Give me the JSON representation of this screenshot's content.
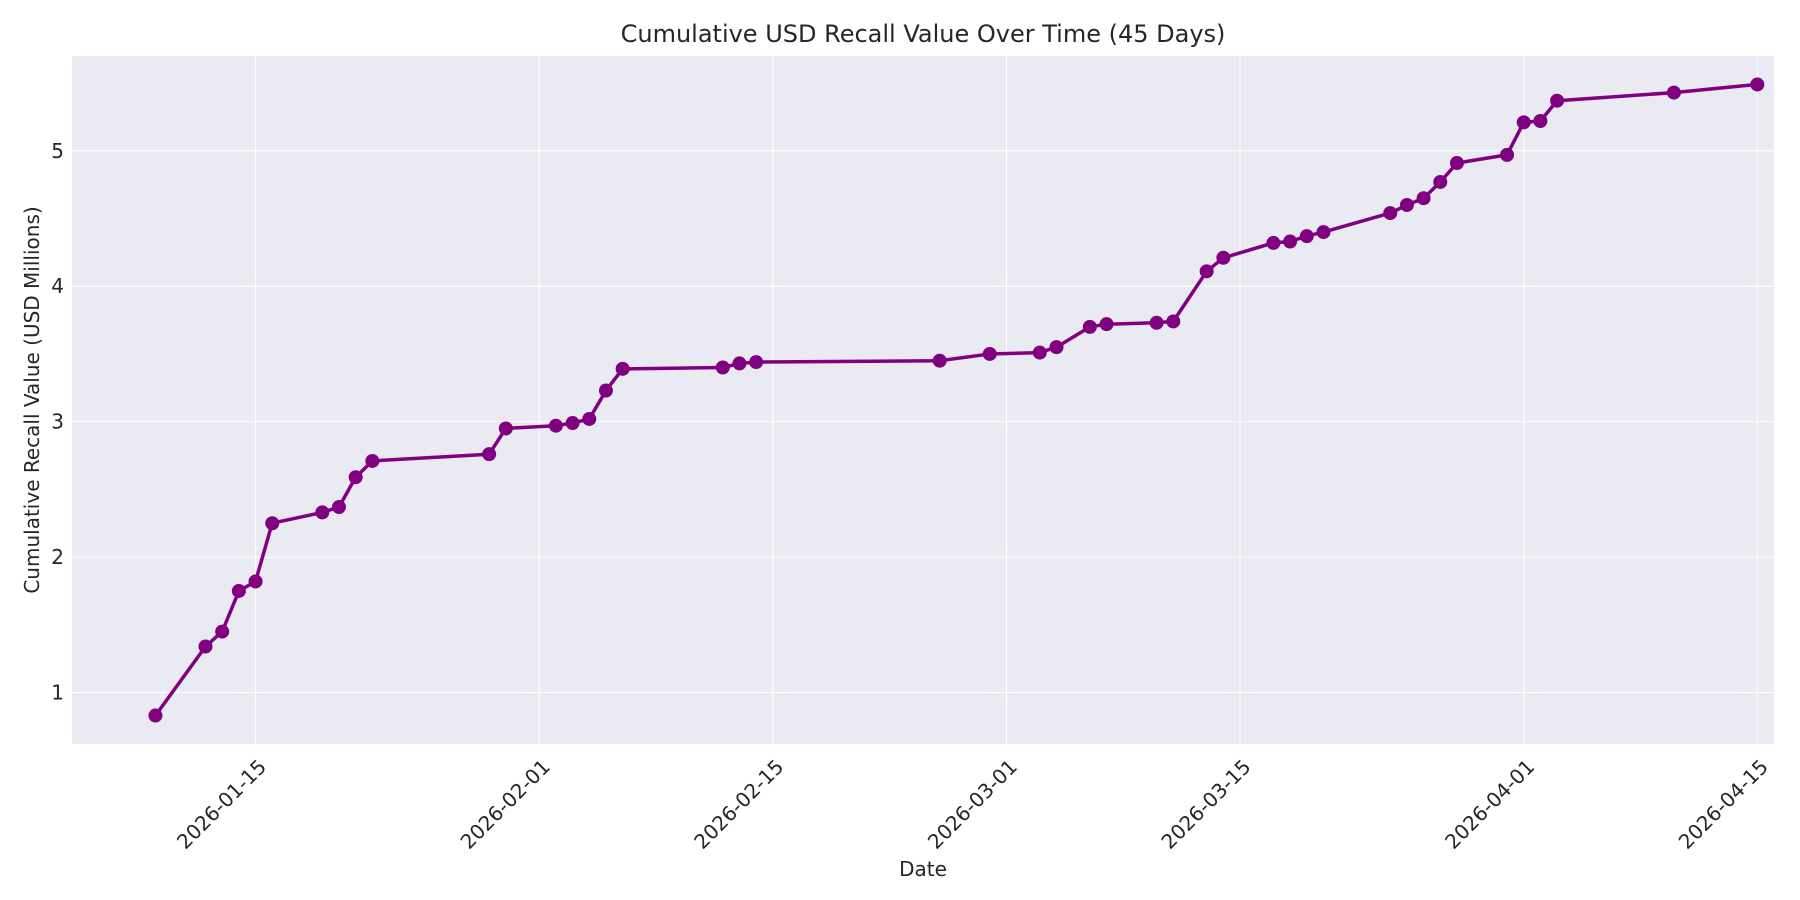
{
  "chart_data": {
    "type": "line",
    "title": "Cumulative USD Recall Value Over Time (45 Days)",
    "xlabel": "Date",
    "ylabel": "Cumulative Recall Value (USD Millions)",
    "xlim": [
      "2026-01-04",
      "2026-04-16"
    ],
    "ylim": [
      0.62,
      5.7
    ],
    "x_ticks": [
      "2026-01-15",
      "2026-02-01",
      "2026-02-15",
      "2026-03-01",
      "2026-03-15",
      "2026-04-01",
      "2026-04-15"
    ],
    "y_ticks": [
      1,
      2,
      3,
      4,
      5
    ],
    "grid": true,
    "colors": {
      "series": "#800080",
      "plot_bg": "#eaeaf2",
      "grid": "#ffffff"
    },
    "series": [
      {
        "x": [
          "2026-01-09",
          "2026-01-12",
          "2026-01-13",
          "2026-01-14",
          "2026-01-15",
          "2026-01-16",
          "2026-01-19",
          "2026-01-20",
          "2026-01-21",
          "2026-01-22",
          "2026-01-29",
          "2026-01-30",
          "2026-02-02",
          "2026-02-03",
          "2026-02-04",
          "2026-02-05",
          "2026-02-06",
          "2026-02-12",
          "2026-02-13",
          "2026-02-14",
          "2026-02-25",
          "2026-02-28",
          "2026-03-03",
          "2026-03-04",
          "2026-03-06",
          "2026-03-07",
          "2026-03-10",
          "2026-03-11",
          "2026-03-13",
          "2026-03-14",
          "2026-03-17",
          "2026-03-18",
          "2026-03-19",
          "2026-03-20",
          "2026-03-24",
          "2026-03-25",
          "2026-03-26",
          "2026-03-27",
          "2026-03-28",
          "2026-03-31",
          "2026-04-01",
          "2026-04-02",
          "2026-04-03",
          "2026-04-10",
          "2026-04-15"
        ],
        "values": [
          0.83,
          1.34,
          1.45,
          1.75,
          1.82,
          2.25,
          2.33,
          2.37,
          2.59,
          2.71,
          2.76,
          2.95,
          2.97,
          2.99,
          3.02,
          3.23,
          3.39,
          3.4,
          3.43,
          3.44,
          3.45,
          3.5,
          3.51,
          3.55,
          3.7,
          3.72,
          3.73,
          3.74,
          4.11,
          4.21,
          4.32,
          4.33,
          4.37,
          4.4,
          4.54,
          4.6,
          4.65,
          4.77,
          4.91,
          4.97,
          5.21,
          5.22,
          5.37,
          5.43,
          5.49
        ]
      }
    ]
  }
}
